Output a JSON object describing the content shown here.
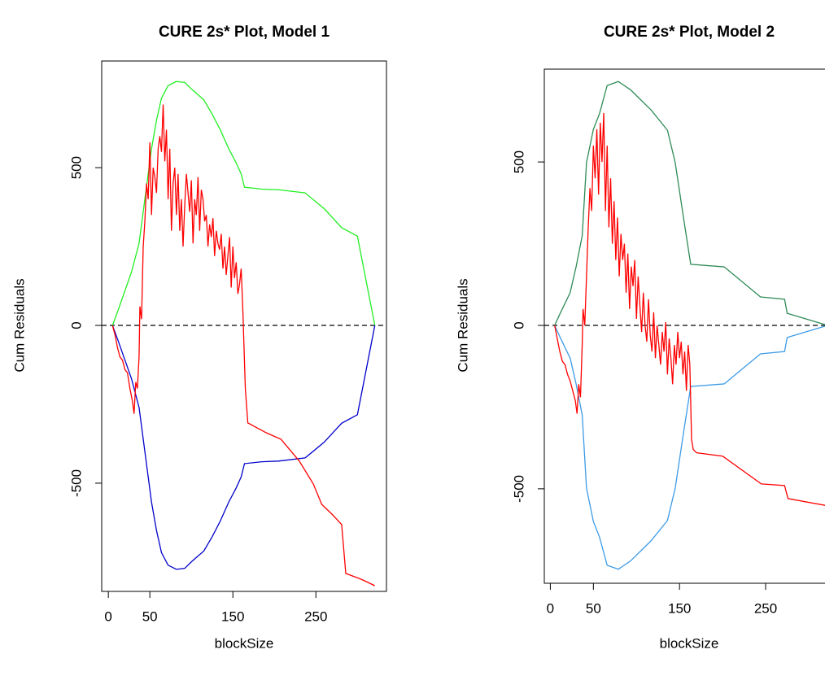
{
  "chart_data": [
    {
      "type": "line",
      "title": "CURE 2s* Plot, Model 1",
      "xlabel": "blockSize",
      "ylabel": "Cum Residuals",
      "xlim": [
        -8,
        335
      ],
      "xticks": [
        0,
        50,
        150,
        250
      ],
      "ylim": [
        -843,
        838
      ],
      "yticks": [
        -500,
        0,
        500
      ],
      "reference_line": 0,
      "series": [
        {
          "color": "#22ee22",
          "x": [
            5,
            12,
            20,
            28,
            37,
            45,
            52,
            58,
            64,
            72,
            82,
            92,
            101,
            115,
            125,
            135,
            145,
            154,
            160,
            164,
            185,
            205,
            237,
            260,
            281,
            300,
            321
          ],
          "values": [
            0,
            50,
            110,
            170,
            260,
            420,
            560,
            650,
            720,
            760,
            773,
            770,
            747,
            715,
            670,
            619,
            560,
            515,
            480,
            438,
            432,
            430,
            420,
            370,
            310,
            283,
            0
          ]
        },
        {
          "color": "#0000cc",
          "x": [
            5,
            12,
            20,
            28,
            37,
            45,
            52,
            58,
            64,
            72,
            82,
            92,
            101,
            115,
            125,
            135,
            145,
            154,
            160,
            164,
            185,
            205,
            237,
            260,
            281,
            300,
            321
          ],
          "values": [
            0,
            -50,
            -110,
            -170,
            -260,
            -420,
            -560,
            -650,
            -720,
            -760,
            -773,
            -770,
            -747,
            -715,
            -670,
            -619,
            -560,
            -515,
            -480,
            -438,
            -432,
            -430,
            -420,
            -370,
            -310,
            -283,
            0
          ]
        },
        {
          "color": "#ff0000",
          "x": [
            5,
            8,
            11,
            14,
            17,
            20,
            23,
            26,
            29,
            31,
            33,
            35,
            37,
            38,
            40,
            42,
            44,
            46,
            48,
            50,
            52,
            54,
            56,
            58,
            60,
            62,
            64,
            66,
            68,
            70,
            72,
            74,
            76,
            78,
            80,
            82,
            84,
            86,
            88,
            90,
            92,
            94,
            96,
            98,
            100,
            102,
            104,
            106,
            108,
            110,
            112,
            114,
            116,
            118,
            120,
            122,
            124,
            126,
            128,
            130,
            132,
            134,
            136,
            138,
            140,
            142,
            144,
            146,
            148,
            150,
            152,
            154,
            156,
            158,
            160,
            162,
            165,
            168,
            190,
            208,
            230,
            247,
            257,
            270,
            281,
            286,
            305,
            321
          ],
          "values": [
            0,
            -30,
            -70,
            -100,
            -110,
            -140,
            -150,
            -200,
            -240,
            -280,
            -180,
            -200,
            -100,
            60,
            20,
            250,
            330,
            450,
            400,
            580,
            350,
            500,
            470,
            420,
            560,
            600,
            550,
            700,
            520,
            620,
            400,
            560,
            300,
            450,
            500,
            350,
            480,
            300,
            400,
            250,
            380,
            480,
            420,
            360,
            460,
            260,
            400,
            350,
            470,
            300,
            430,
            400,
            330,
            350,
            250,
            320,
            280,
            340,
            220,
            300,
            260,
            240,
            290,
            180,
            250,
            160,
            220,
            280,
            120,
            250,
            150,
            200,
            100,
            130,
            180,
            50,
            -200,
            -309,
            -340,
            -361,
            -430,
            -503,
            -567,
            -600,
            -631,
            -786,
            -805,
            -825
          ]
        }
      ]
    },
    {
      "type": "line",
      "title": "CURE 2s* Plot, Model 2",
      "xlabel": "blockSize",
      "ylabel": "Cum Residuals",
      "xlim": [
        -7,
        335
      ],
      "xticks": [
        0,
        50,
        150,
        250
      ],
      "ylim": [
        -789,
        784
      ],
      "yticks": [
        -500,
        0,
        500
      ],
      "reference_line": 0,
      "series": [
        {
          "color": "#2e8b57",
          "x": [
            5,
            12,
            23,
            30,
            37,
            42,
            50,
            57,
            66,
            79,
            93,
            105,
            117,
            136,
            145,
            155,
            163,
            202,
            244,
            272,
            275,
            322
          ],
          "values": [
            0,
            40,
            100,
            180,
            274,
            498,
            600,
            647,
            734,
            746,
            721,
            690,
            659,
            597,
            498,
            323,
            187,
            179,
            87,
            80,
            37,
            0
          ]
        },
        {
          "color": "#3d9be6",
          "x": [
            5,
            12,
            23,
            30,
            37,
            42,
            50,
            57,
            66,
            79,
            93,
            105,
            117,
            136,
            145,
            155,
            163,
            202,
            244,
            272,
            275,
            322
          ],
          "values": [
            0,
            -40,
            -100,
            -180,
            -274,
            -498,
            -600,
            -647,
            -734,
            -746,
            -721,
            -690,
            -659,
            -597,
            -498,
            -323,
            -187,
            -179,
            -87,
            -80,
            -37,
            0
          ]
        },
        {
          "color": "#ff0000",
          "x": [
            5,
            8,
            11,
            14,
            17,
            20,
            23,
            26,
            29,
            31,
            33,
            35,
            37,
            38,
            40,
            42,
            44,
            46,
            48,
            50,
            52,
            54,
            56,
            58,
            60,
            62,
            64,
            66,
            68,
            70,
            72,
            74,
            76,
            78,
            80,
            82,
            84,
            86,
            88,
            90,
            92,
            94,
            96,
            98,
            100,
            102,
            104,
            106,
            108,
            110,
            112,
            114,
            116,
            118,
            120,
            122,
            124,
            126,
            128,
            130,
            132,
            134,
            136,
            138,
            140,
            142,
            144,
            146,
            148,
            150,
            152,
            154,
            156,
            158,
            160,
            162,
            164,
            166,
            170,
            200,
            245,
            272,
            276,
            322
          ],
          "values": [
            0,
            -40,
            -80,
            -110,
            -120,
            -150,
            -170,
            -200,
            -230,
            -270,
            -180,
            -220,
            -60,
            50,
            0,
            150,
            300,
            420,
            350,
            550,
            450,
            600,
            400,
            620,
            500,
            650,
            350,
            550,
            300,
            450,
            250,
            380,
            200,
            330,
            150,
            280,
            200,
            250,
            100,
            220,
            50,
            180,
            120,
            200,
            20,
            150,
            60,
            -20,
            100,
            0,
            -50,
            80,
            -30,
            -80,
            40,
            -100,
            0,
            -60,
            -120,
            -20,
            -80,
            10,
            -150,
            -40,
            -100,
            -180,
            -60,
            -120,
            -20,
            -100,
            -50,
            -150,
            -80,
            -200,
            -60,
            -120,
            -350,
            -380,
            -390,
            -400,
            -485,
            -490,
            -530,
            -552
          ]
        }
      ]
    }
  ]
}
